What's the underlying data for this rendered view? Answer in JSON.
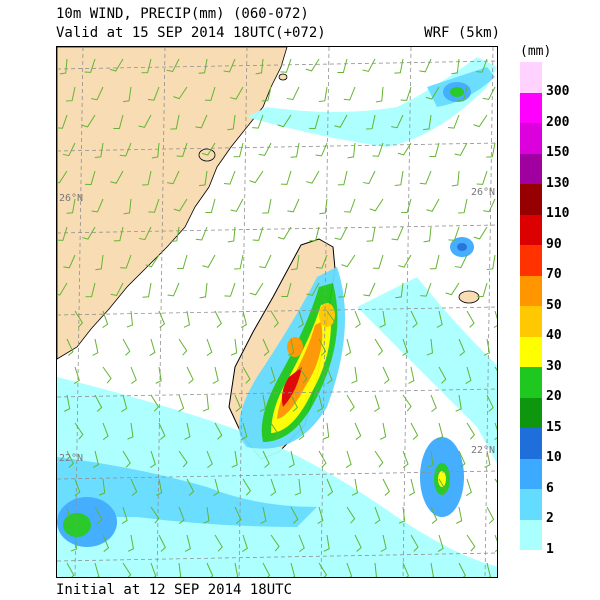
{
  "header": {
    "title": "10m WIND, PRECIP(mm) (060-072)",
    "valid": "Valid at 15 SEP 2014 18UTC(+072)",
    "model": "WRF (5km)"
  },
  "footer": {
    "initial": "Initial at 12 SEP 2014 18UTC"
  },
  "map": {
    "lat_labels": [
      "26°N",
      "26°N",
      "22°N",
      "22°N"
    ],
    "colors": {
      "land": "#f8dcb4",
      "wind": "#64b432",
      "grid": "#909090",
      "coast": "#000000"
    }
  },
  "legend": {
    "unit": "(mm)",
    "labels": [
      "300",
      "200",
      "150",
      "130",
      "110",
      "90",
      "70",
      "50",
      "40",
      "30",
      "20",
      "15",
      "10",
      "6",
      "2",
      "1"
    ],
    "colors": [
      "#ffd2ff",
      "#ff00ff",
      "#dc00dc",
      "#a000a0",
      "#960000",
      "#dc0000",
      "#ff3200",
      "#ff9600",
      "#ffc800",
      "#ffff00",
      "#1ec81e",
      "#0f960f",
      "#1e6edc",
      "#3caaff",
      "#64dcff",
      "#aaffff"
    ]
  }
}
